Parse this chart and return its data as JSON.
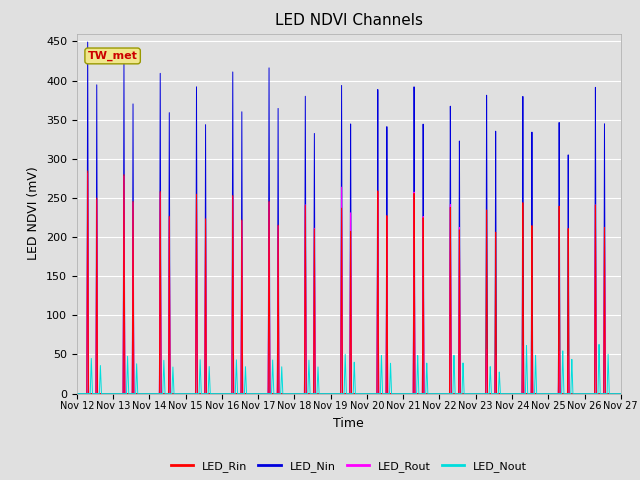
{
  "title": "LED NDVI Channels",
  "xlabel": "Time",
  "ylabel": "LED NDVI (mV)",
  "ylim": [
    0,
    460
  ],
  "yticks": [
    0,
    50,
    100,
    150,
    200,
    250,
    300,
    350,
    400,
    450
  ],
  "background_color": "#e0e0e0",
  "plot_bg_color": "#e0e0e0",
  "grid_color": "white",
  "annotation_text": "TW_met",
  "annotation_box_color": "#f0e68c",
  "annotation_text_color": "#cc0000",
  "legend_entries": [
    "LED_Rin",
    "LED_Nin",
    "LED_Rout",
    "LED_Nout"
  ],
  "line_colors": [
    "#ff0000",
    "#0000dd",
    "#ff00ff",
    "#00dddd"
  ],
  "spike_peaks_Nin": [
    450,
    425,
    415,
    400,
    422,
    430,
    395,
    412,
    405,
    406,
    378,
    390,
    386,
    350,
    393
  ],
  "spike_peaks_Rin": [
    285,
    282,
    262,
    260,
    260,
    254,
    250,
    248,
    270,
    265,
    245,
    240,
    248,
    242,
    242
  ],
  "spike_peaks_Rout": [
    282,
    280,
    260,
    258,
    258,
    252,
    250,
    275,
    268,
    266,
    248,
    58,
    62,
    55,
    242
  ],
  "spike_peaks_Nout": [
    45,
    48,
    43,
    44,
    44,
    44,
    44,
    52,
    50,
    50,
    50,
    35,
    62,
    55,
    63
  ],
  "xticklabels": [
    "Nov 12",
    "Nov 13",
    "Nov 14",
    "Nov 15",
    "Nov 16",
    "Nov 17",
    "Nov 18",
    "Nov 19",
    "Nov 20",
    "Nov 21",
    "Nov 22",
    "Nov 23",
    "Nov 24",
    "Nov 25",
    "Nov 26",
    "Nov 27"
  ],
  "num_spikes": 15,
  "figsize": [
    6.4,
    4.8
  ],
  "dpi": 100
}
